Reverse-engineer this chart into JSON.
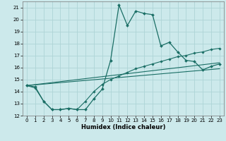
{
  "xlabel": "Humidex (Indice chaleur)",
  "bg_color": "#cce9eb",
  "grid_color": "#aed4d6",
  "line_color": "#1a6e65",
  "xlim": [
    -0.5,
    23.5
  ],
  "ylim": [
    12,
    21.5
  ],
  "yticks": [
    12,
    13,
    14,
    15,
    16,
    17,
    18,
    19,
    20,
    21
  ],
  "xticks": [
    0,
    1,
    2,
    3,
    4,
    5,
    6,
    7,
    8,
    9,
    10,
    11,
    12,
    13,
    14,
    15,
    16,
    17,
    18,
    19,
    20,
    21,
    22,
    23
  ],
  "line1_x": [
    0,
    1,
    2,
    3,
    4,
    5,
    6,
    7,
    8,
    9,
    10,
    11,
    12,
    13,
    14,
    15,
    16,
    17,
    18,
    19,
    20,
    21,
    22,
    23
  ],
  "line1_y": [
    14.5,
    14.4,
    13.2,
    12.5,
    12.5,
    12.6,
    12.5,
    12.5,
    13.4,
    14.2,
    16.6,
    21.2,
    19.5,
    20.7,
    20.5,
    20.4,
    17.8,
    18.1,
    17.3,
    16.6,
    16.5,
    15.8,
    16.1,
    16.3
  ],
  "line2_x": [
    0,
    1,
    2,
    3,
    4,
    5,
    6,
    7,
    8,
    9,
    10,
    11,
    12,
    13,
    14,
    15,
    16,
    17,
    18,
    19,
    20,
    21,
    22,
    23
  ],
  "line2_y": [
    14.5,
    14.3,
    13.2,
    12.5,
    12.5,
    12.6,
    12.5,
    13.2,
    14.0,
    14.6,
    15.0,
    15.3,
    15.6,
    15.9,
    16.1,
    16.3,
    16.5,
    16.7,
    16.9,
    17.0,
    17.2,
    17.3,
    17.5,
    17.6
  ],
  "line3_x": [
    0,
    23
  ],
  "line3_y": [
    14.5,
    16.4
  ],
  "line4_x": [
    0,
    23
  ],
  "line4_y": [
    14.5,
    15.9
  ]
}
